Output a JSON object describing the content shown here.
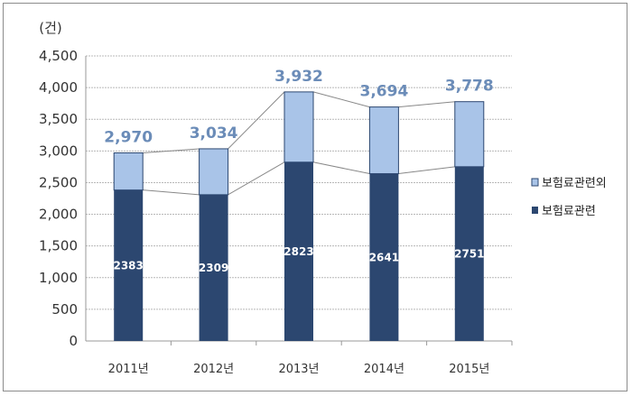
{
  "chart_data": {
    "type": "bar",
    "stacked": true,
    "unit_label": "(건)",
    "categories": [
      "2011년",
      "2012년",
      "2013년",
      "2014년",
      "2015년"
    ],
    "series": [
      {
        "name": "보험료관련",
        "values": [
          2383,
          2309,
          2823,
          2641,
          2751
        ],
        "color": "#2c4770"
      },
      {
        "name": "보험료관련외",
        "values": [
          587,
          725,
          1109,
          1053,
          1027
        ],
        "color": "#a9c4e8"
      }
    ],
    "inner_labels": [
      "2383",
      "2309",
      "2823",
      "2641",
      "2751"
    ],
    "total_labels": [
      "2,970",
      "3,034",
      "3,932",
      "3,694",
      "3,778"
    ],
    "yticks": [
      "0",
      "500",
      "1,000",
      "1,500",
      "2,000",
      "2,500",
      "3,000",
      "3,500",
      "4,000",
      "4,500"
    ],
    "ylim": [
      0,
      4500
    ],
    "grid": true,
    "connector_lines": true,
    "legend_position": "right"
  }
}
